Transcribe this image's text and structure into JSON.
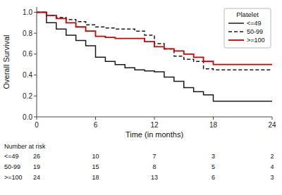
{
  "chart_data": {
    "type": "step",
    "xlabel": "Time (in months)",
    "ylabel": "Overall Survival",
    "x": [
      0,
      1,
      2,
      3,
      4,
      5,
      6,
      7,
      8,
      9,
      10,
      11,
      12,
      13,
      14,
      15,
      16,
      17,
      18,
      24
    ],
    "series": [
      {
        "name": "<=49",
        "color": "#1a1a1a",
        "line_style": "solid",
        "values": [
          1.0,
          0.9,
          0.84,
          0.78,
          0.73,
          0.68,
          0.57,
          0.53,
          0.5,
          0.47,
          0.45,
          0.44,
          0.43,
          0.38,
          0.34,
          0.28,
          0.24,
          0.21,
          0.15,
          0.15
        ]
      },
      {
        "name": "50-99",
        "color": "#1a1a1a",
        "line_style": "dashed",
        "values": [
          1.0,
          0.97,
          0.95,
          0.93,
          0.91,
          0.88,
          0.86,
          0.85,
          0.84,
          0.84,
          0.82,
          0.78,
          0.7,
          0.65,
          0.58,
          0.55,
          0.53,
          0.46,
          0.45,
          0.45
        ]
      },
      {
        "name": ">=100",
        "color": "#cc0000",
        "line_style": "solid",
        "values": [
          1.0,
          0.97,
          0.94,
          0.9,
          0.86,
          0.82,
          0.77,
          0.76,
          0.75,
          0.75,
          0.75,
          0.72,
          0.67,
          0.65,
          0.63,
          0.6,
          0.57,
          0.53,
          0.5,
          0.5
        ]
      }
    ],
    "xlim": [
      0,
      24
    ],
    "ylim": [
      0.0,
      1.05
    ],
    "xticks": [
      0,
      6,
      12,
      18,
      24
    ],
    "yticks": [
      {
        "value": 0.0,
        "label": "0.0"
      },
      0.2,
      0.4,
      0.6,
      0.8,
      {
        "value": 1.0,
        "label": "1.0"
      }
    ],
    "grid": false,
    "legend": "upper right",
    "legend_title": "Platelet",
    "risk_table": {
      "label": "Number at risk",
      "groups": [
        "<=49",
        "50-99",
        ">=100"
      ],
      "times": [
        0,
        6,
        12,
        18,
        24
      ],
      "counts": [
        [
          26,
          10,
          7,
          3,
          2
        ],
        [
          19,
          15,
          8,
          5,
          4
        ],
        [
          24,
          18,
          13,
          6,
          3
        ]
      ]
    }
  }
}
